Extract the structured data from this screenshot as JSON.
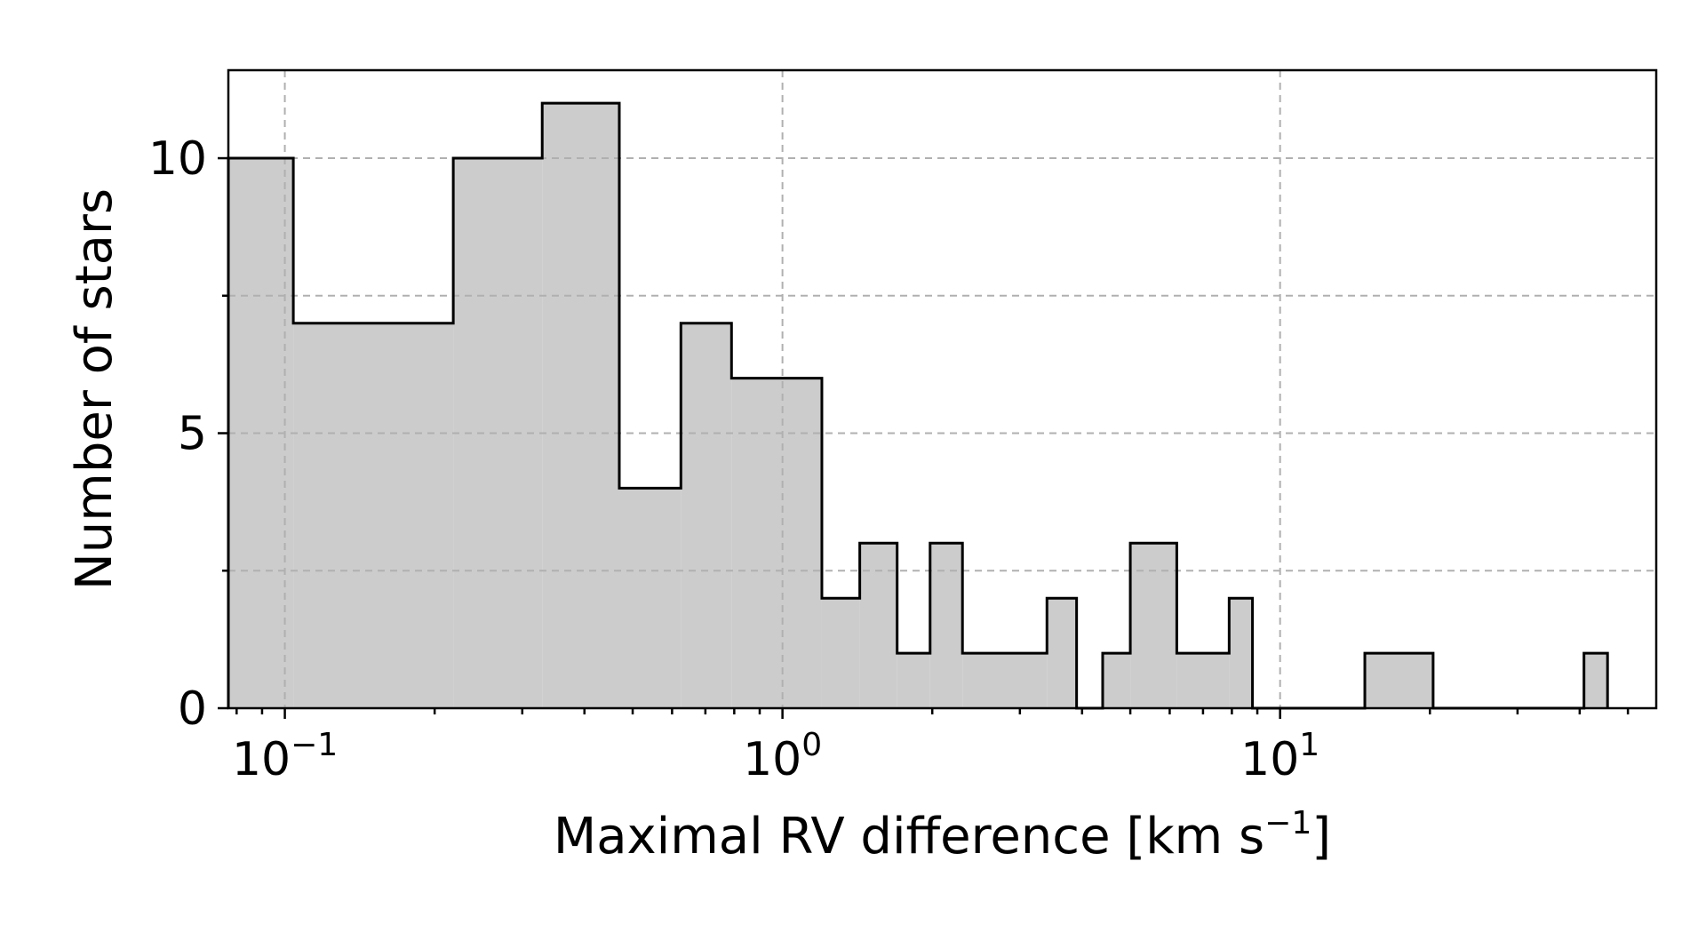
{
  "chart_data": {
    "type": "bar",
    "histogram": true,
    "xscale": "log",
    "xlabel": "Maximal RV difference [km s",
    "xlabel_sup": "−1",
    "xlabel_end": "]",
    "ylabel": "Number of stars",
    "xlim": [
      0.077,
      57
    ],
    "ylim": [
      0,
      11.6
    ],
    "x_ticks": [
      {
        "value": 0.1,
        "base": "10",
        "exp": "−1"
      },
      {
        "value": 1,
        "base": "10",
        "exp": "0"
      },
      {
        "value": 10,
        "base": "10",
        "exp": "1"
      }
    ],
    "y_ticks": [
      {
        "value": 0,
        "label": "0"
      },
      {
        "value": 5,
        "label": "5"
      },
      {
        "value": 10,
        "label": "10"
      }
    ],
    "y_grid": [
      0,
      2.5,
      5,
      7.5,
      10
    ],
    "grid": true,
    "bin_edges": [
      0.077,
      0.104,
      0.218,
      0.329,
      0.47,
      0.625,
      0.79,
      1.2,
      1.43,
      1.7,
      1.98,
      2.3,
      3.4,
      3.9,
      4.4,
      5.0,
      6.2,
      7.9,
      8.8,
      14.8,
      20.3,
      40.8,
      45.5
    ],
    "values": [
      10,
      7,
      10,
      11,
      4,
      7,
      6,
      2,
      3,
      1,
      3,
      1,
      2,
      0,
      1,
      3,
      1,
      2,
      0,
      1,
      0,
      1
    ],
    "colors": {
      "fill": "#cccccc",
      "edge": "#000000",
      "grid": "#b0b0b0"
    }
  }
}
